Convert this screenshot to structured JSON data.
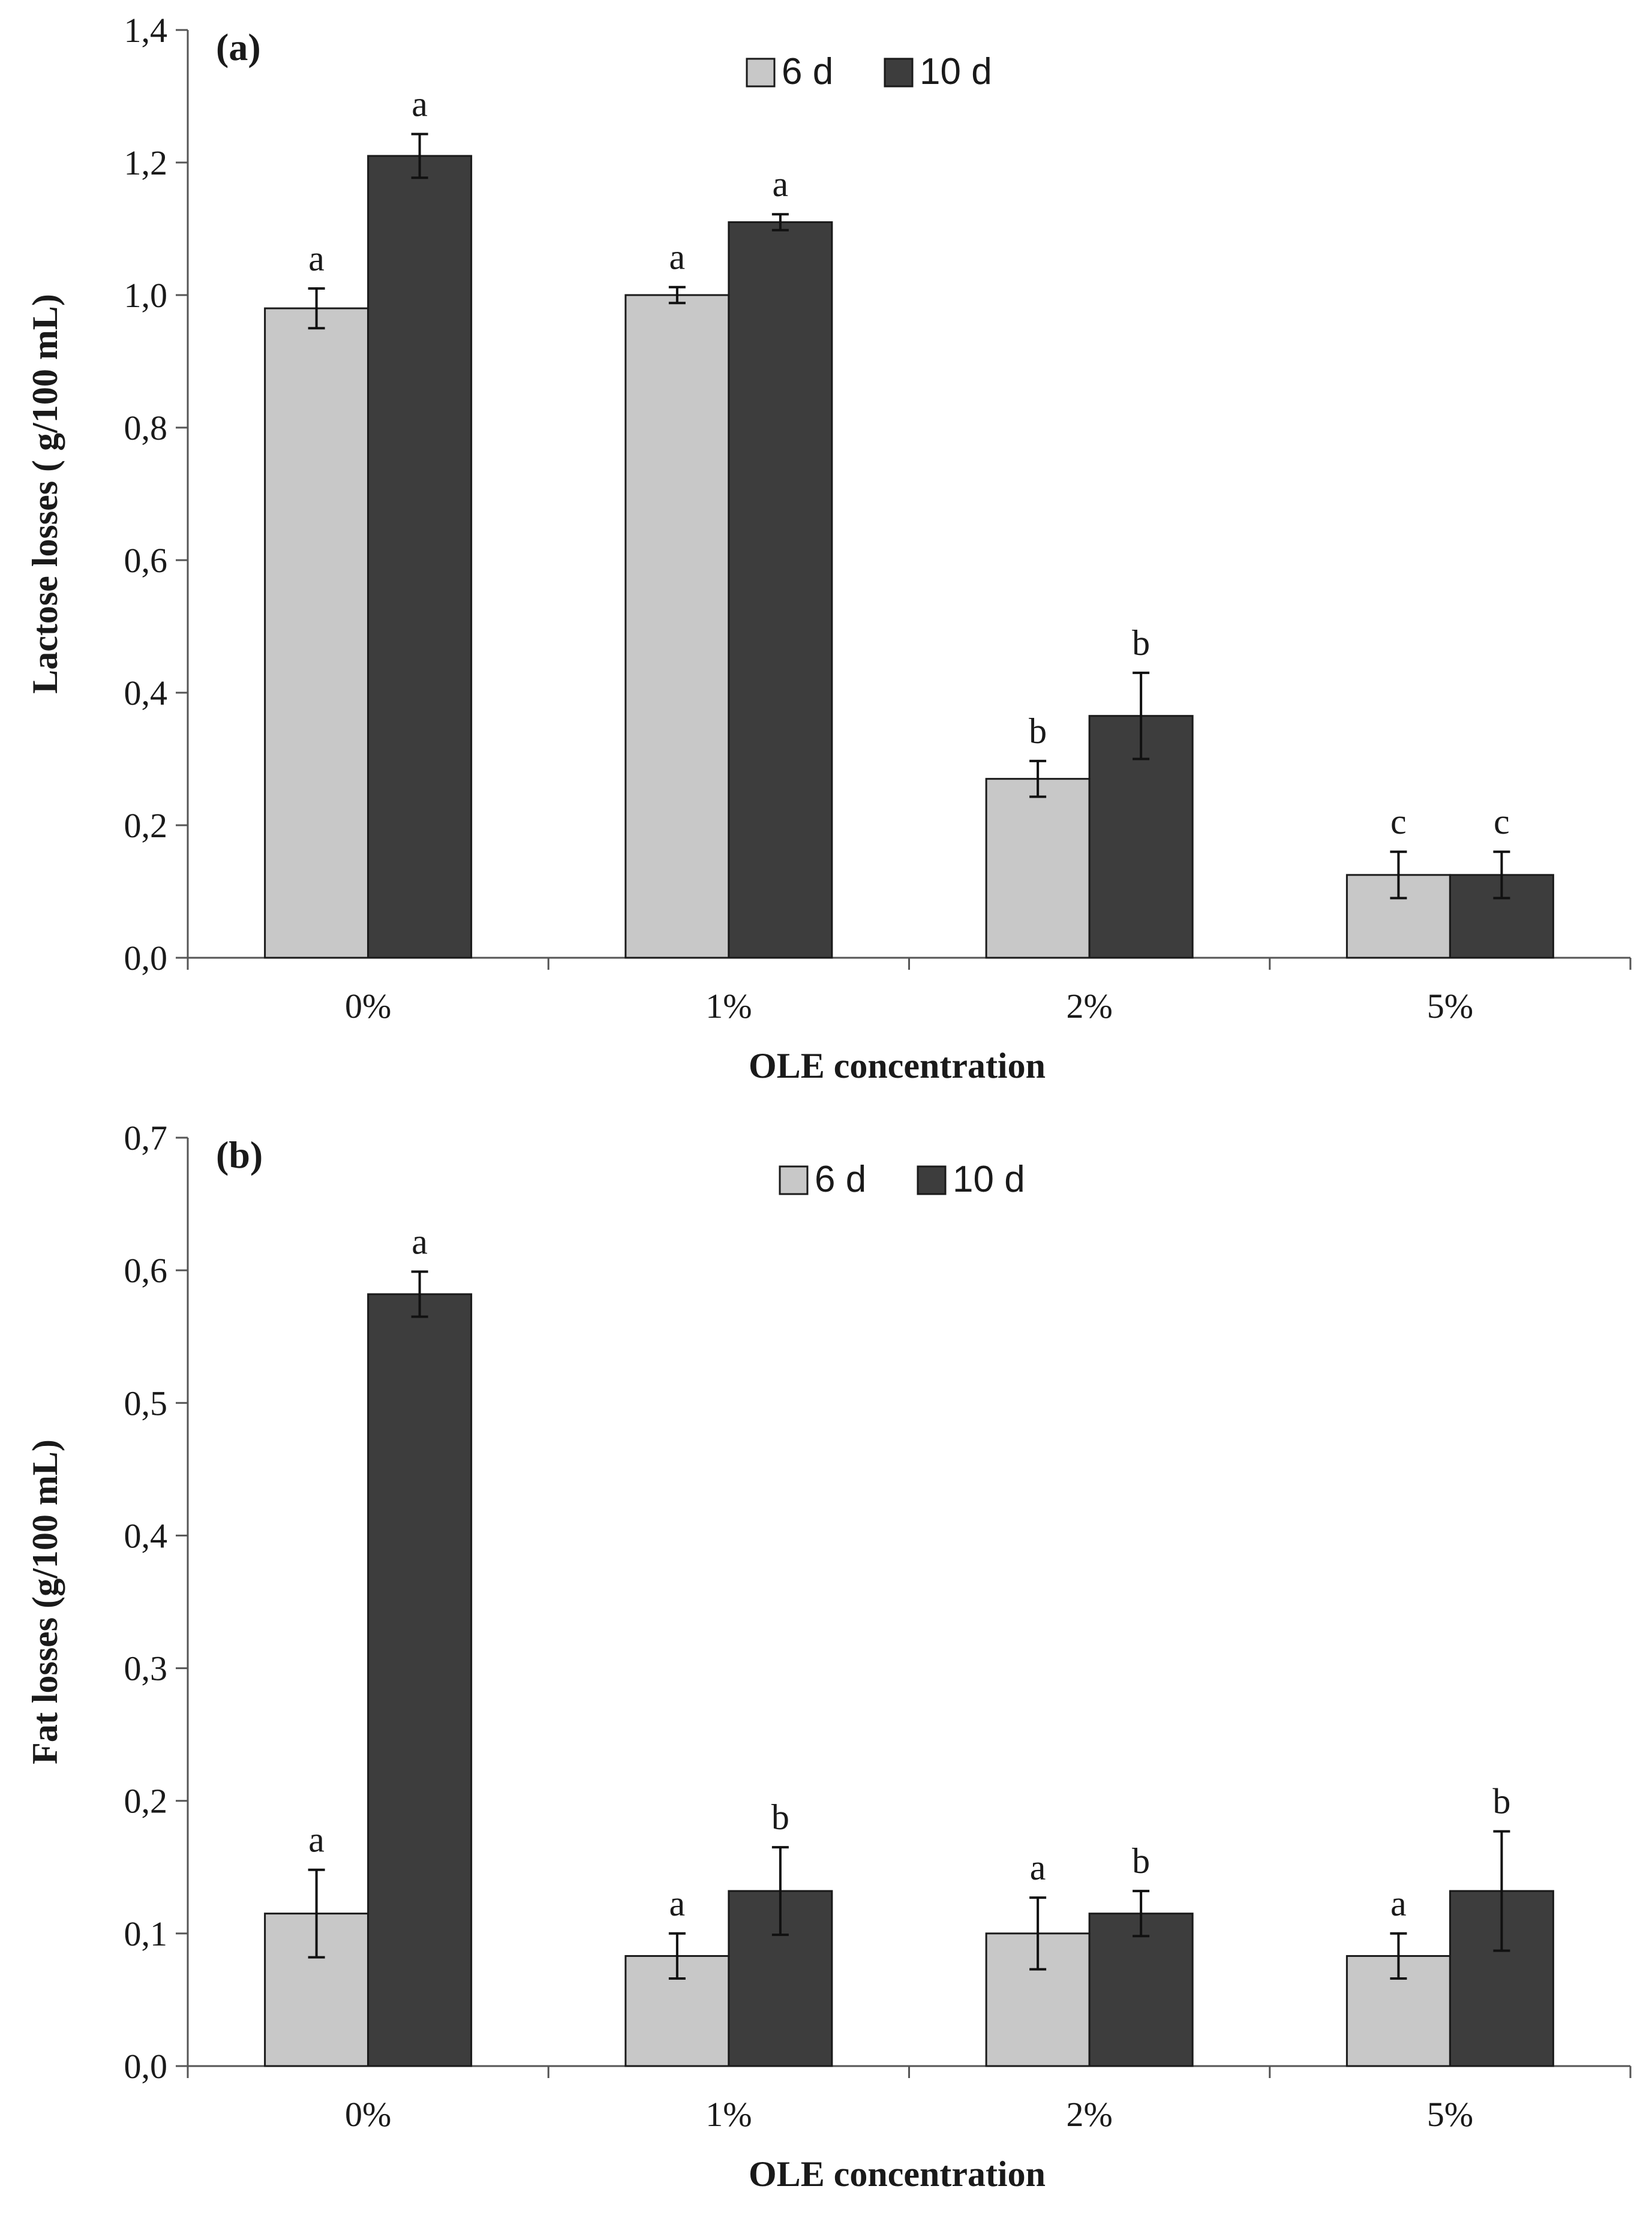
{
  "chart_data": [
    {
      "type": "bar",
      "panel_label": "(a)",
      "categories": [
        "0%",
        "1%",
        "2%",
        "5%"
      ],
      "series": [
        {
          "name": "6 d",
          "color": "#c8c8c8",
          "values": [
            0.98,
            1.0,
            0.27,
            0.125
          ],
          "errors": [
            0.03,
            0.012,
            0.027,
            0.035
          ],
          "letters": [
            "a",
            "a",
            "b",
            "c"
          ]
        },
        {
          "name": "10 d",
          "color": "#3d3d3d",
          "values": [
            1.21,
            1.11,
            0.365,
            0.125
          ],
          "errors": [
            0.033,
            0.012,
            0.065,
            0.035
          ],
          "letters": [
            "a",
            "a",
            "b",
            "c"
          ]
        }
      ],
      "title": "",
      "xlabel": "OLE concentration",
      "ylabel": "Lactose losses ( g/100 mL)",
      "ylim": [
        0,
        1.4
      ],
      "yticks": [
        0,
        0.2,
        0.4,
        0.6,
        0.8,
        1.0,
        1.2,
        1.4
      ],
      "ytick_labels": [
        "0,0",
        "0,2",
        "0,4",
        "0,6",
        "0,8",
        "1,0",
        "1,2",
        "1,4"
      ],
      "grid": false,
      "legend": "top-center"
    },
    {
      "type": "bar",
      "panel_label": "(b)",
      "categories": [
        "0%",
        "1%",
        "2%",
        "5%"
      ],
      "series": [
        {
          "name": "6 d",
          "color": "#c8c8c8",
          "values": [
            0.115,
            0.083,
            0.1,
            0.083
          ],
          "errors": [
            0.033,
            0.017,
            0.027,
            0.017
          ],
          "letters": [
            "a",
            "a",
            "a",
            "a"
          ]
        },
        {
          "name": "10 d",
          "color": "#3d3d3d",
          "values": [
            0.582,
            0.132,
            0.115,
            0.132
          ],
          "errors": [
            0.017,
            0.033,
            0.017,
            0.045
          ],
          "letters": [
            "a",
            "b",
            "b",
            "b"
          ]
        }
      ],
      "title": "",
      "xlabel": "OLE concentration",
      "ylabel": "Fat losses (g/100 mL)",
      "ylim": [
        0,
        0.7
      ],
      "yticks": [
        0,
        0.1,
        0.2,
        0.3,
        0.4,
        0.5,
        0.6,
        0.7
      ],
      "ytick_labels": [
        "0,0",
        "0,1",
        "0,2",
        "0,3",
        "0,4",
        "0,5",
        "0,6",
        "0,7"
      ],
      "grid": false,
      "legend": "top-center"
    }
  ]
}
